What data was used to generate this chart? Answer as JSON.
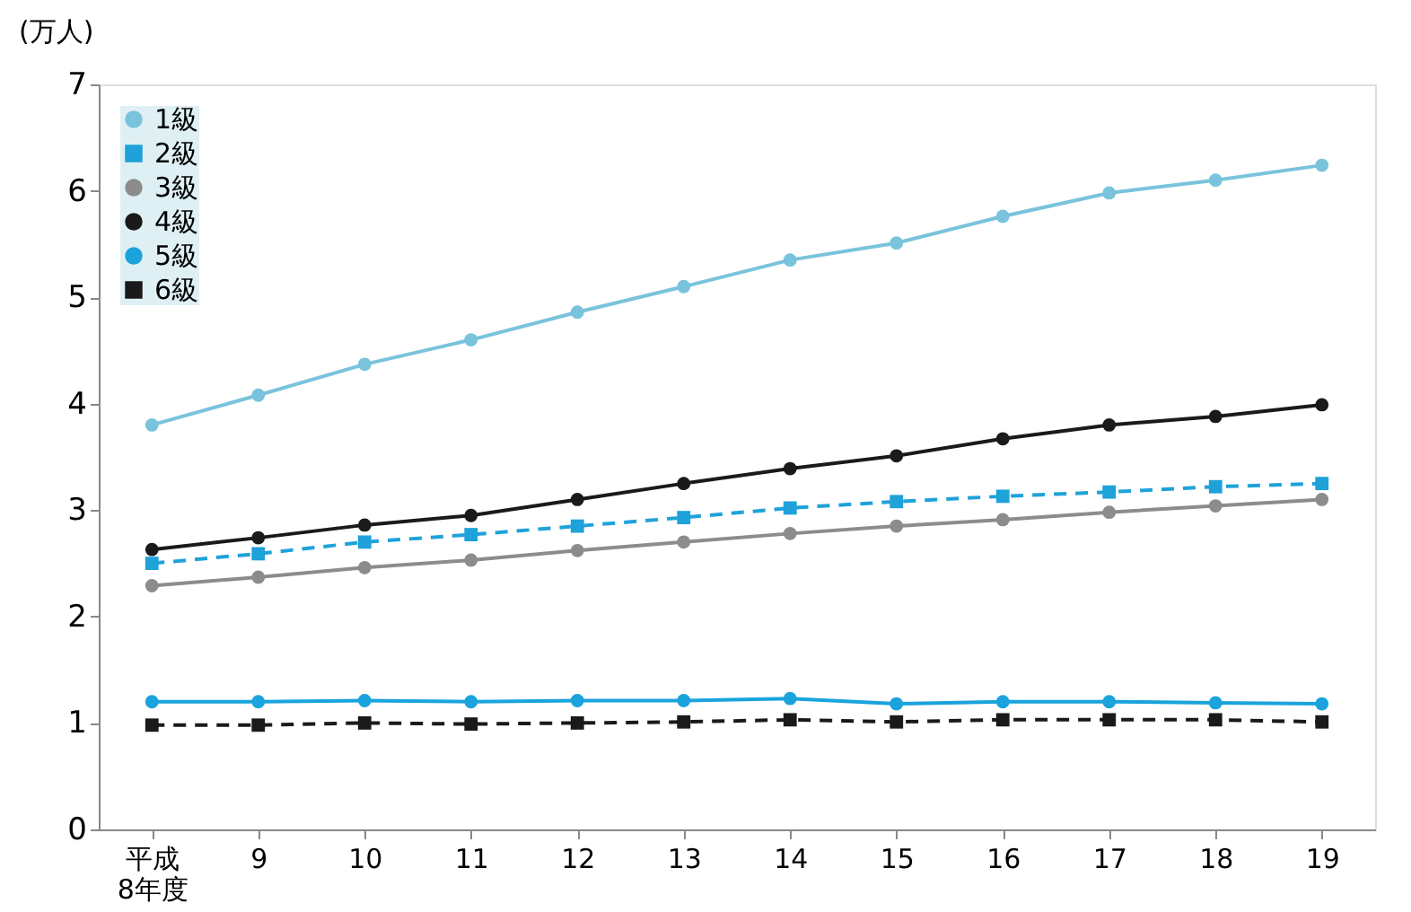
{
  "chart_data": {
    "type": "line",
    "ylabel": "(万人)",
    "categories": [
      "平成\n8年度",
      "9",
      "10",
      "11",
      "12",
      "13",
      "14",
      "15",
      "16",
      "17",
      "18",
      "19"
    ],
    "ylim": [
      0,
      7
    ],
    "yticks": [
      0,
      1,
      2,
      3,
      4,
      5,
      6,
      7
    ],
    "grid": false,
    "legend": "top left",
    "series": [
      {
        "name": "1級",
        "color": "#79c3dc",
        "marker": "circle",
        "line_style": "solid",
        "values": [
          3.8,
          4.08,
          4.37,
          4.6,
          4.86,
          5.1,
          5.35,
          5.51,
          5.76,
          5.98,
          6.1,
          6.24
        ]
      },
      {
        "name": "2級",
        "color": "#1ea2d9",
        "marker": "square",
        "line_style": "dashed",
        "values": [
          2.5,
          2.59,
          2.7,
          2.77,
          2.85,
          2.93,
          3.02,
          3.08,
          3.13,
          3.17,
          3.22,
          3.25
        ]
      },
      {
        "name": "3級",
        "color": "#8c8c8c",
        "marker": "circle",
        "line_style": "solid",
        "values": [
          2.29,
          2.37,
          2.46,
          2.53,
          2.62,
          2.7,
          2.78,
          2.85,
          2.91,
          2.98,
          3.04,
          3.1
        ]
      },
      {
        "name": "4級",
        "color": "#1a1a1a",
        "marker": "circle",
        "line_style": "solid",
        "values": [
          2.63,
          2.74,
          2.86,
          2.95,
          3.1,
          3.25,
          3.39,
          3.51,
          3.67,
          3.8,
          3.88,
          3.99
        ]
      },
      {
        "name": "5級",
        "color": "#1aa3dc",
        "marker": "circle",
        "line_style": "solid",
        "values": [
          1.2,
          1.2,
          1.21,
          1.2,
          1.21,
          1.21,
          1.23,
          1.18,
          1.2,
          1.2,
          1.19,
          1.18
        ]
      },
      {
        "name": "6級",
        "color": "#1a1a1a",
        "marker": "square",
        "line_style": "dashed",
        "values": [
          0.98,
          0.98,
          1.0,
          0.99,
          1.0,
          1.01,
          1.03,
          1.01,
          1.03,
          1.03,
          1.03,
          1.01
        ]
      }
    ]
  }
}
